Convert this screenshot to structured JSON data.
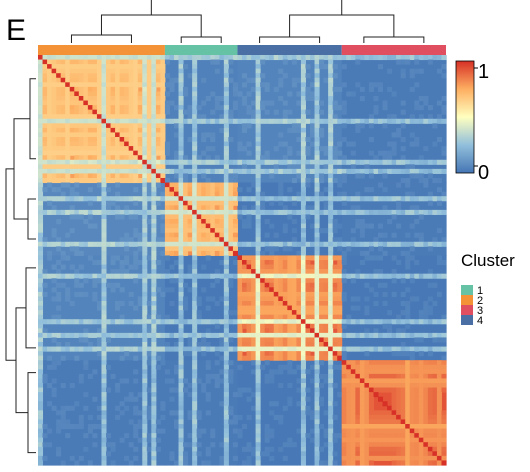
{
  "panel_label": "E",
  "chart_data": {
    "type": "heatmap",
    "description_of_values": "consensus matrix, samples ordered by cluster",
    "scale": {
      "min": 0,
      "max": 1,
      "min_label": "0",
      "max_label": "1",
      "colors": [
        "#4575b4",
        "#91bfdb",
        "#ffffbf",
        "#fdae61",
        "#d73027"
      ]
    },
    "legend": {
      "title": "Cluster",
      "placement": "right",
      "items": [
        {
          "label": "1",
          "color": "#66c2a5"
        },
        {
          "label": "2",
          "color": "#f39237"
        },
        {
          "label": "3",
          "color": "#e04f5f"
        },
        {
          "label": "4",
          "color": "#4a6fa5"
        }
      ]
    },
    "block_order": [
      {
        "cluster": "2",
        "size": 28
      },
      {
        "cluster": "1",
        "size": 16
      },
      {
        "cluster": "4",
        "size": 23
      },
      {
        "cluster": "3",
        "size": 23
      }
    ],
    "blocks": [
      [
        0.78,
        0.04,
        0.05,
        0.02
      ],
      [
        0.06,
        0.82,
        0.01,
        0.02
      ],
      [
        0.05,
        0.01,
        0.92,
        0.01
      ],
      [
        0.02,
        0.02,
        0.01,
        0.93
      ]
    ],
    "column_dendrogram": true,
    "row_dendrogram": true,
    "grid": false
  }
}
